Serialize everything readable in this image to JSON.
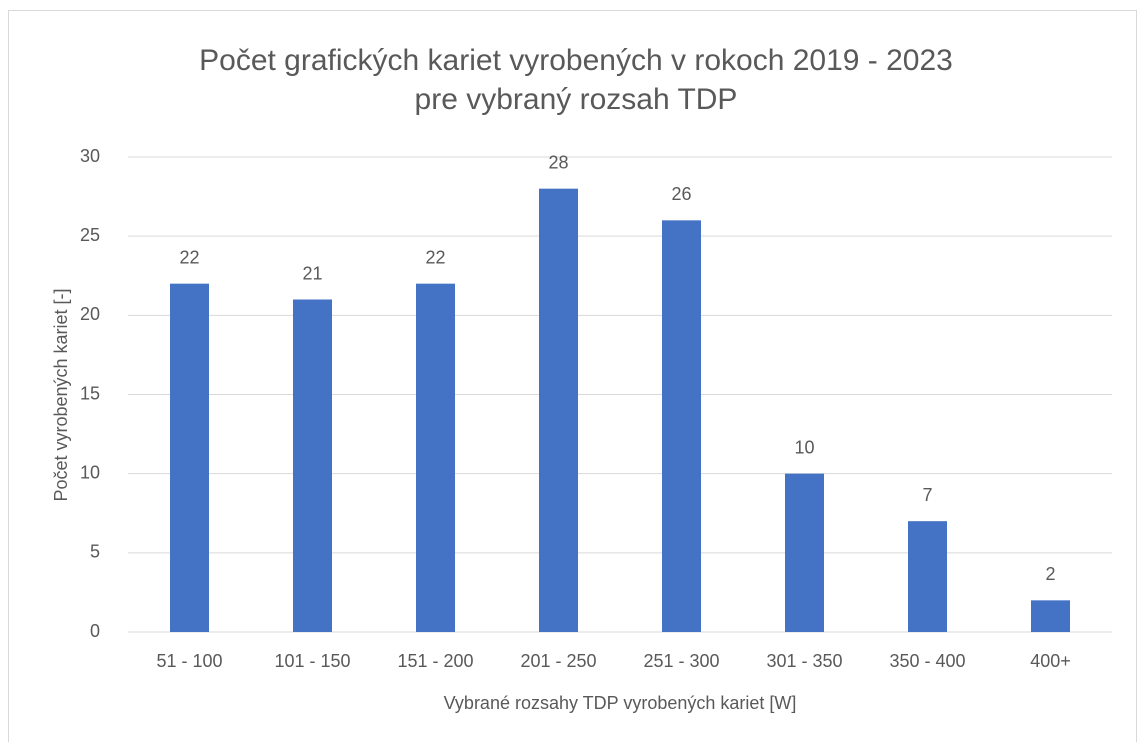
{
  "chart_data": {
    "type": "bar",
    "title": [
      "Počet grafických kariet vyrobených v rokoch 2019 - 2023",
      "pre vybraný rozsah TDP"
    ],
    "x_label": "Vybrané rozsahy TDP vyrobených kariet [W]",
    "y_label": "Počet vyrobených kariet [-]",
    "categories": [
      "51 - 100",
      "101 - 150",
      "151 - 200",
      "201 - 250",
      "251 - 300",
      "301 - 350",
      "350 - 400",
      "400+"
    ],
    "values": [
      22,
      21,
      22,
      28,
      26,
      10,
      7,
      2
    ],
    "color": "#4472c4",
    "ylim": [
      0,
      30
    ],
    "yticks": [
      0,
      5,
      10,
      15,
      20,
      25,
      30
    ],
    "grid": true
  }
}
